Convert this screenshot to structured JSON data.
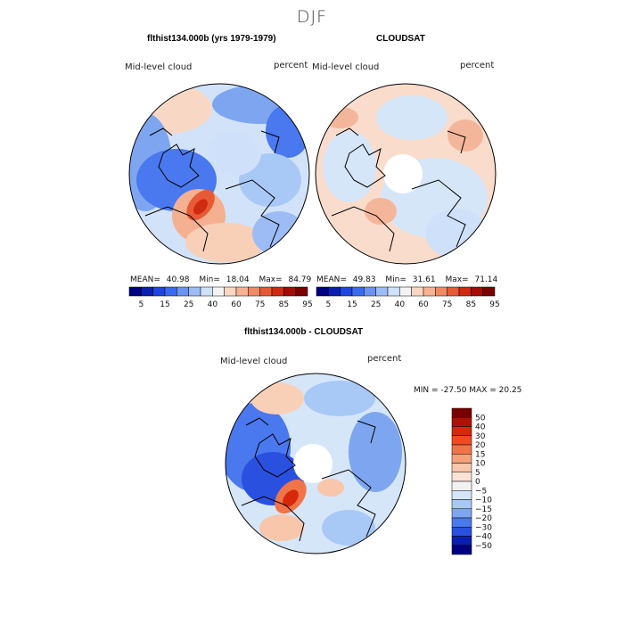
{
  "main_title": "DJF",
  "panels": [
    {
      "title": "flthist134.000b (yrs 1979-1979)",
      "variable_label": "Mid-level cloud",
      "units_label": "percent",
      "stats": {
        "mean_label": "MEAN=",
        "mean": "40.98",
        "min_label": "Min=",
        "min": "18.04",
        "max_label": "Max=",
        "max": "84.79"
      },
      "has_hole": false
    },
    {
      "title": "CLOUDSAT",
      "variable_label": "Mid-level cloud",
      "units_label": "percent",
      "stats": {
        "mean_label": "MEAN=",
        "mean": "49.83",
        "min_label": "Min=",
        "min": "31.61",
        "max_label": "Max=",
        "max": "71.14"
      },
      "has_hole": true
    },
    {
      "title": "flthist134.000b - CLOUDSAT",
      "variable_label": "Mid-level cloud",
      "units_label": "percent",
      "stats_text": "MIN = -27.50 MAX =  20.25",
      "has_hole": true
    }
  ],
  "horizontal_colorbar": {
    "labels": [
      "5",
      "15",
      "25",
      "40",
      "60",
      "75",
      "85",
      "95"
    ],
    "colors": [
      "#000080",
      "#0a1fb0",
      "#1f45e0",
      "#3a6af0",
      "#6b93f0",
      "#9dbcf5",
      "#cfe0fa",
      "#f4f4f4",
      "#fbd7c3",
      "#f6b292",
      "#f08a63",
      "#e65a35",
      "#d02a10",
      "#a40c05",
      "#7a0000"
    ]
  },
  "vertical_colorbar": {
    "labels": [
      "50",
      "40",
      "30",
      "20",
      "15",
      "10",
      "5",
      "0",
      "−5",
      "−10",
      "−15",
      "−20",
      "−30",
      "−40",
      "−50"
    ],
    "colors": [
      "#7a0000",
      "#b01005",
      "#d8280a",
      "#f04a20",
      "#f07448",
      "#f4a07a",
      "#f8c6aa",
      "#fbe4d6",
      "#f2f2f2",
      "#d6e6f9",
      "#a8c8f6",
      "#7ea6f0",
      "#4a78ee",
      "#2a50e0",
      "#0a1fb0",
      "#000080"
    ]
  }
}
